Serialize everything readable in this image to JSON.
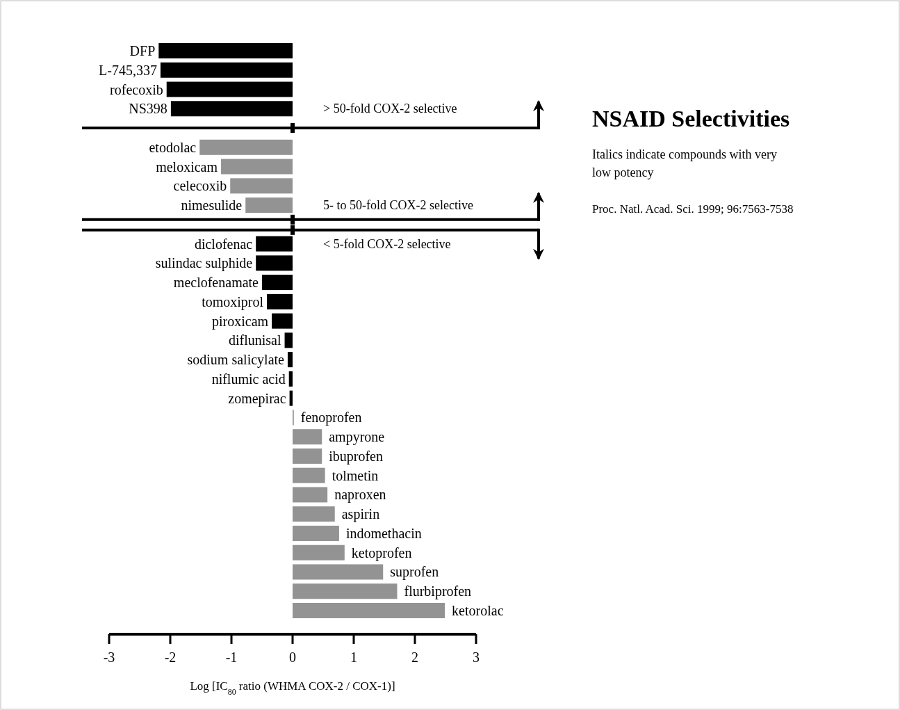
{
  "chart_data": {
    "type": "bar",
    "orientation": "horizontal",
    "title": "NSAID Selectivities",
    "subtitle": "Italics indicate compounds with very low potency",
    "xlabel": "Log [IC$_{80}$ ratio (WHMA COX-2 / COX-1)]",
    "categories": [
      "DFP",
      "L-745,337",
      "rofecoxib",
      "NS398",
      null,
      "etodolac",
      "meloxicam",
      "celecoxib",
      "nimesulide",
      null,
      "diclofenac",
      "sulindac sulphide",
      "meclofenamate",
      "tomoxiprol",
      "piroxicam",
      "diflunisal",
      "sodium salicylate",
      "niflumic acid",
      "zomepirac",
      "fenoprofen",
      "ampyrone",
      "ibuprofen",
      "tolmetin",
      "naproxen",
      "aspirin",
      "indomethacin",
      "ketoprofen",
      "suprofen",
      "flurbiprofen",
      "ketorolac"
    ],
    "values": [
      -2.19,
      -2.16,
      -2.06,
      -1.99,
      null,
      -1.52,
      -1.17,
      -1.02,
      -0.77,
      null,
      -0.6,
      -0.6,
      -0.5,
      -0.42,
      -0.34,
      -0.13,
      -0.08,
      -0.06,
      -0.05,
      0.02,
      0.48,
      0.48,
      0.53,
      0.57,
      0.69,
      0.76,
      0.85,
      1.48,
      1.71,
      2.49
    ],
    "colors": [
      "#000000",
      "#000000",
      "#000000",
      "#000000",
      null,
      "#939393",
      "#939393",
      "#939393",
      "#939393",
      null,
      "#000000",
      "#000000",
      "#000000",
      "#000000",
      "#000000",
      "#000000",
      "#000000",
      "#000000",
      "#000000",
      "#939393",
      "#939393",
      "#939393",
      "#939393",
      "#939393",
      "#939393",
      "#939393",
      "#939393",
      "#939393",
      "#939393",
      "#939393"
    ],
    "xlim": [
      -3,
      3
    ],
    "xticks": [
      -3,
      -2,
      -1,
      0,
      1,
      2,
      3
    ],
    "annotations": [
      "> 50-fold COX-2 selective",
      "5- to 50-fold COX-2 selective",
      "< 5-fold COX-2 selective",
      "Proc. Natl. Acad. Sci. 1999; 96:7563-7538"
    ]
  }
}
